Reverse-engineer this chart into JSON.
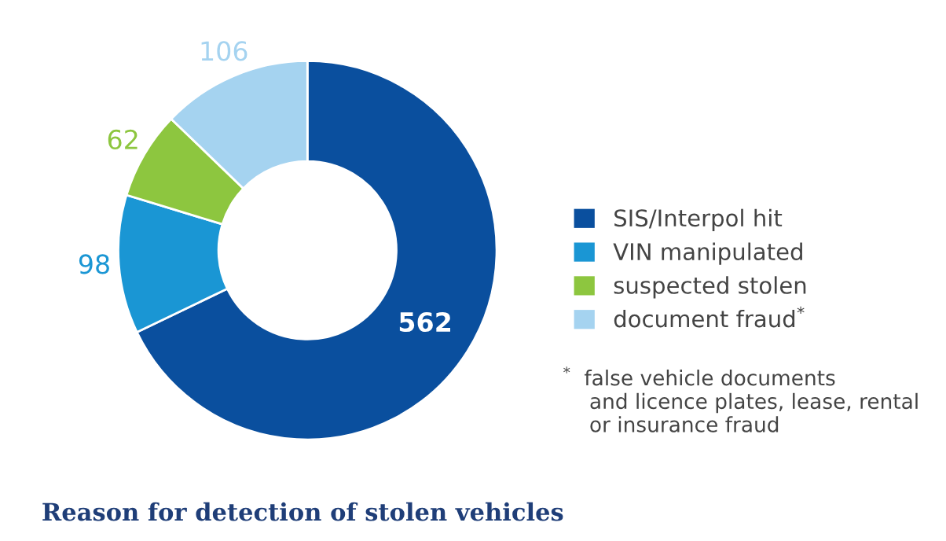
{
  "chart_data": {
    "type": "donut",
    "title": "Reason for detection of stolen vehicles",
    "categories": [
      "SIS/Interpol hit",
      "VIN manipulated",
      "suspected stolen",
      "document fraud$^{*}$"
    ],
    "values": [
      562,
      98,
      62,
      106
    ],
    "colors": [
      "#0a4f9e",
      "#1a96d4",
      "#8dc63f",
      "#a5d3f0"
    ],
    "data_labels": true,
    "legend": "right",
    "annotations": [
      "$^{*}$  false vehicle documents\n    and licence plates, lease, rental\n    or insurance fraud"
    ]
  }
}
